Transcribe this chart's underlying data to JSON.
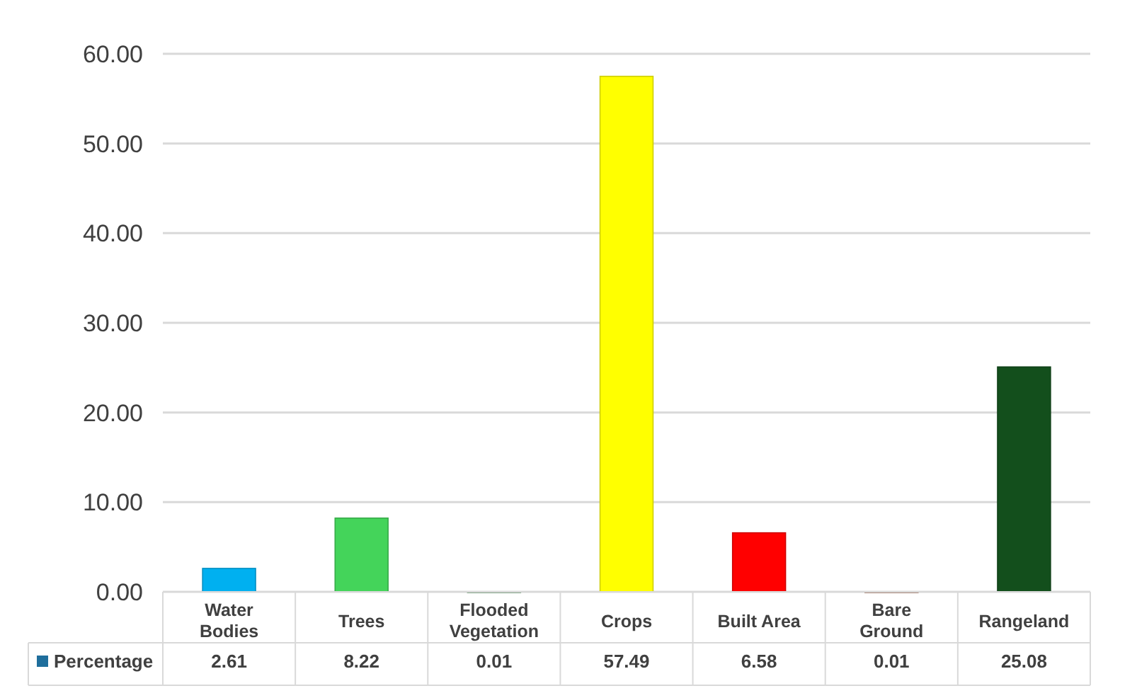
{
  "chart_data": {
    "type": "bar",
    "categories": [
      "Water Bodies",
      "Trees",
      "Flooded Vegetation",
      "Crops",
      "Built Area",
      "Bare Ground",
      "Rangeland"
    ],
    "series": [
      {
        "name": "Percentage",
        "color": "#1f6e9c",
        "colors": [
          "#00b0f0",
          "#44d45a",
          "#8fbf96",
          "#ffff00",
          "#ff0000",
          "#c4957f",
          "#134f1c"
        ],
        "values": [
          2.61,
          8.22,
          0.01,
          57.49,
          6.58,
          0.01,
          25.08
        ]
      }
    ],
    "ylim": [
      0,
      60
    ],
    "yticks": [
      {
        "value": 0,
        "label": "0.00"
      },
      {
        "value": 10,
        "label": "10.00"
      },
      {
        "value": 20,
        "label": "20.00"
      },
      {
        "value": 30,
        "label": "30.00"
      },
      {
        "value": 40,
        "label": "40.00"
      },
      {
        "value": 50,
        "label": "50.00"
      },
      {
        "value": 60,
        "label": "60.00"
      }
    ],
    "grid": true,
    "legend": "bottom",
    "data_labels": true
  }
}
